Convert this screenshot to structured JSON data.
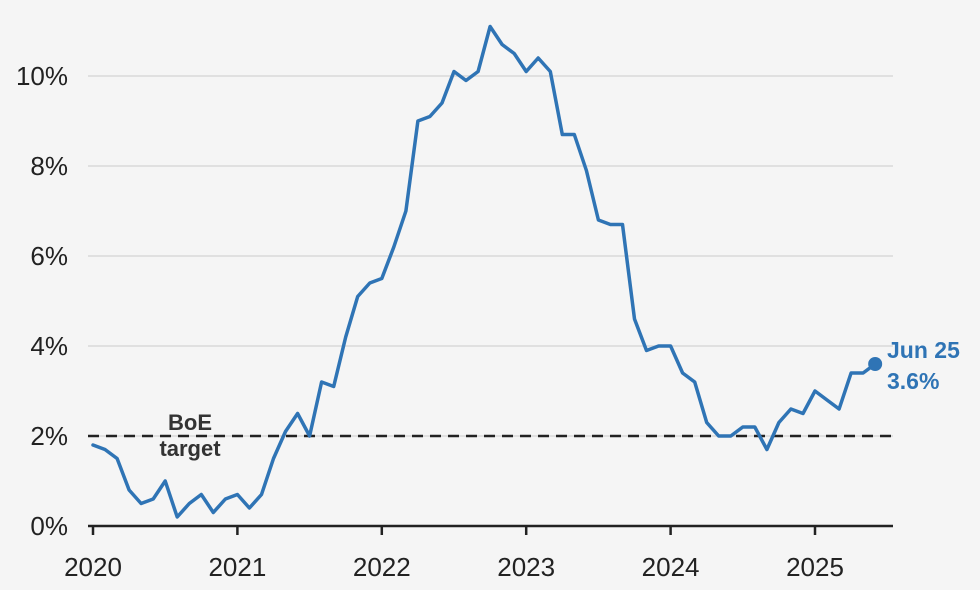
{
  "chart_data": {
    "type": "line",
    "title": "",
    "xlabel": "",
    "ylabel": "",
    "x_ticks": [
      "2020",
      "2021",
      "2022",
      "2023",
      "2024",
      "2025"
    ],
    "y_ticks": [
      "0%",
      "2%",
      "4%",
      "6%",
      "8%",
      "10%"
    ],
    "ylim": [
      0,
      11.5
    ],
    "grid": true,
    "colors": {
      "series": "#2f74b5",
      "target": "#222222",
      "grid": "#d9d9d9"
    },
    "target": {
      "value": 2,
      "label_line1": "BoE",
      "label_line2": "target"
    },
    "end_label": {
      "date": "Jun 25",
      "value": "3.6%"
    },
    "series": [
      {
        "x": [
          "2020-01",
          "2020-02",
          "2020-03",
          "2020-04",
          "2020-05",
          "2020-06",
          "2020-07",
          "2020-08",
          "2020-09",
          "2020-10",
          "2020-11",
          "2020-12",
          "2021-01",
          "2021-02",
          "2021-03",
          "2021-04",
          "2021-05",
          "2021-06",
          "2021-07",
          "2021-08",
          "2021-09",
          "2021-10",
          "2021-11",
          "2021-12",
          "2022-01",
          "2022-02",
          "2022-03",
          "2022-04",
          "2022-05",
          "2022-06",
          "2022-07",
          "2022-08",
          "2022-09",
          "2022-10",
          "2022-11",
          "2022-12",
          "2023-01",
          "2023-02",
          "2023-03",
          "2023-04",
          "2023-05",
          "2023-06",
          "2023-07",
          "2023-08",
          "2023-09",
          "2023-10",
          "2023-11",
          "2023-12",
          "2024-01",
          "2024-02",
          "2024-03",
          "2024-04",
          "2024-05",
          "2024-06",
          "2024-07",
          "2024-08",
          "2024-09",
          "2024-10",
          "2024-11",
          "2024-12",
          "2025-01",
          "2025-02",
          "2025-03",
          "2025-04",
          "2025-05",
          "2025-06"
        ],
        "values": [
          1.8,
          1.7,
          1.5,
          0.8,
          0.5,
          0.6,
          1.0,
          0.2,
          0.5,
          0.7,
          0.3,
          0.6,
          0.7,
          0.4,
          0.7,
          1.5,
          2.1,
          2.5,
          2.0,
          3.2,
          3.1,
          4.2,
          5.1,
          5.4,
          5.5,
          6.2,
          7.0,
          9.0,
          9.1,
          9.4,
          10.1,
          9.9,
          10.1,
          11.1,
          10.7,
          10.5,
          10.1,
          10.4,
          10.1,
          8.7,
          8.7,
          7.9,
          6.8,
          6.7,
          6.7,
          4.6,
          3.9,
          4.0,
          4.0,
          3.4,
          3.2,
          2.3,
          2.0,
          2.0,
          2.2,
          2.2,
          1.7,
          2.3,
          2.6,
          2.5,
          3.0,
          2.8,
          2.6,
          3.4,
          3.4,
          3.6
        ]
      }
    ]
  }
}
